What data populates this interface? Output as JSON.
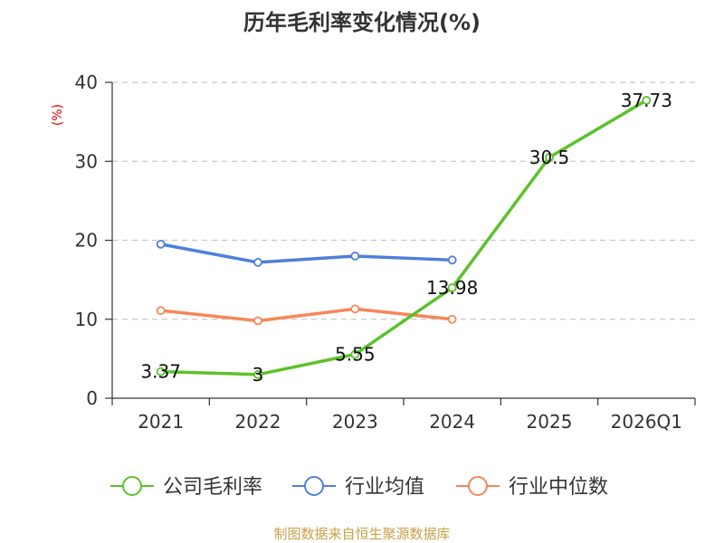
{
  "chart_data": {
    "type": "line",
    "title": "历年毛利率变化情况(%)",
    "ylabel": "(%)",
    "xlabel": "",
    "categories": [
      "2021",
      "2022",
      "2023",
      "2024",
      "2025",
      "2026Q1"
    ],
    "ylim": [
      0,
      40
    ],
    "yticks": [
      0,
      10,
      20,
      30,
      40
    ],
    "grid": true,
    "legend_position": "bottom",
    "series": [
      {
        "name": "公司毛利率",
        "color": "#5cc22b",
        "values": [
          3.37,
          3,
          5.55,
          13.98,
          30.5,
          37.73
        ],
        "labels": [
          "3.37",
          "3",
          "5.55",
          "13.98",
          "30.5",
          "37.73"
        ]
      },
      {
        "name": "行业均值",
        "color": "#4f7fdc",
        "values": [
          19.5,
          17.2,
          18.0,
          17.5,
          null,
          null
        ],
        "labels": []
      },
      {
        "name": "行业中位数",
        "color": "#f5875a",
        "values": [
          11.1,
          9.8,
          11.3,
          10.0,
          null,
          null
        ],
        "labels": []
      }
    ]
  },
  "source": "制图数据来自恒生聚源数据库"
}
